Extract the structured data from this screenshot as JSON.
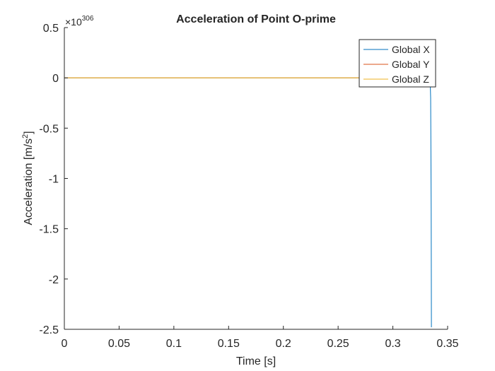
{
  "chart_data": {
    "type": "line",
    "title": "Acceleration of Point O-prime",
    "xlabel": "Time [s]",
    "ylabel": "Acceleration [m/s",
    "ylabel_sup": "2",
    "ylabel_end": "]",
    "y_exponent_prefix": "×10",
    "y_exponent_value": "306",
    "xlim": [
      0,
      0.35
    ],
    "ylim": [
      -2.5,
      0.5
    ],
    "xticks": [
      0,
      0.05,
      0.1,
      0.15,
      0.2,
      0.25,
      0.3,
      0.35
    ],
    "xtick_labels": [
      "0",
      "0.05",
      "0.1",
      "0.15",
      "0.2",
      "0.25",
      "0.3",
      "0.35"
    ],
    "yticks": [
      0.5,
      0,
      -0.5,
      -1,
      -1.5,
      -2,
      -2.5
    ],
    "ytick_labels": [
      "0.5",
      "0",
      "-0.5",
      "-1",
      "-1.5",
      "-2",
      "-2.5"
    ],
    "grid": false,
    "legend_position": "top-right",
    "series": [
      {
        "name": "Global X",
        "color": "#0072BD",
        "x": [
          0,
          0.334,
          0.3345,
          0.335,
          0.3352
        ],
        "y": [
          0,
          0,
          -0.2,
          -1.3,
          -2.48
        ]
      },
      {
        "name": "Global Y",
        "color": "#D95319",
        "x": [
          0,
          0.3375
        ],
        "y": [
          0,
          0
        ]
      },
      {
        "name": "Global Z",
        "color": "#EDB120",
        "x": [
          0,
          0.3375
        ],
        "y": [
          0,
          0
        ]
      }
    ]
  }
}
